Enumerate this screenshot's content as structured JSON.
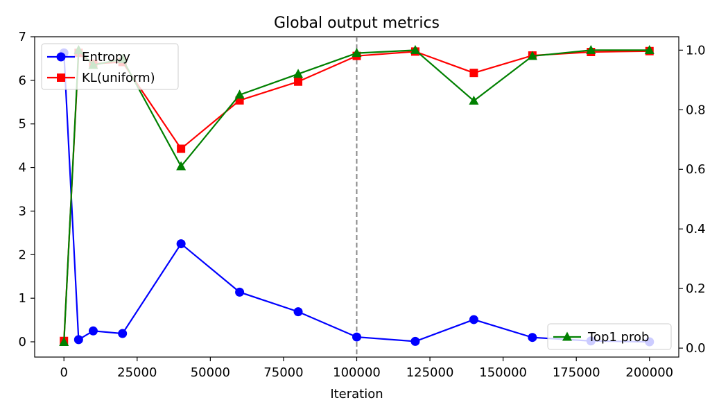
{
  "chart_data": {
    "type": "line",
    "title": "Global output metrics",
    "xlabel": "Iteration",
    "ylabel": "",
    "ylabel_right": "",
    "x": [
      0,
      5000,
      10000,
      20000,
      40000,
      60000,
      80000,
      100000,
      120000,
      140000,
      160000,
      180000,
      200000
    ],
    "xlim": [
      -10000,
      210000
    ],
    "ylim": [
      -0.35,
      7.0
    ],
    "ylim_right": [
      -0.03,
      1.045
    ],
    "xticks": [
      0,
      25000,
      50000,
      75000,
      100000,
      125000,
      150000,
      175000,
      200000
    ],
    "yticks": [
      0,
      1,
      2,
      3,
      4,
      5,
      6,
      7
    ],
    "yticks_right": [
      0.0,
      0.2,
      0.4,
      0.6,
      0.8,
      1.0
    ],
    "xtick_labels": [
      "0",
      "25000",
      "50000",
      "75000",
      "100000",
      "125000",
      "150000",
      "175000",
      "200000"
    ],
    "ytick_labels": [
      "0",
      "1",
      "2",
      "3",
      "4",
      "5",
      "6",
      "7"
    ],
    "ytick_labels_right": [
      "0.0",
      "0.2",
      "0.4",
      "0.6",
      "0.8",
      "1.0"
    ],
    "grid": false,
    "vline": {
      "x": 100000,
      "color": "#888888",
      "style": "dashed"
    },
    "series": [
      {
        "name": "Entropy",
        "axis": "left",
        "color": "#0000ff",
        "marker": "circle",
        "values": [
          6.63,
          0.05,
          0.25,
          0.19,
          2.25,
          1.14,
          0.69,
          0.11,
          0.01,
          0.51,
          0.1,
          0.02,
          0.0
        ]
      },
      {
        "name": "KL(uniform)",
        "axis": "left",
        "color": "#ff0000",
        "marker": "square",
        "values": [
          0.02,
          6.63,
          6.38,
          6.42,
          4.43,
          5.54,
          5.97,
          6.56,
          6.66,
          6.17,
          6.57,
          6.65,
          6.67
        ]
      },
      {
        "name": "Top1 prob",
        "axis": "right",
        "color": "#008000",
        "marker": "triangle",
        "values": [
          0.02,
          1.0,
          0.95,
          0.97,
          0.61,
          0.85,
          0.92,
          0.99,
          1.0,
          0.83,
          0.98,
          1.0,
          1.0
        ]
      }
    ],
    "legend_left": {
      "placement": "upper-left",
      "entries": [
        "Entropy",
        "KL(uniform)"
      ]
    },
    "legend_right": {
      "placement": "lower-right",
      "entries": [
        "Top1 prob"
      ]
    }
  }
}
